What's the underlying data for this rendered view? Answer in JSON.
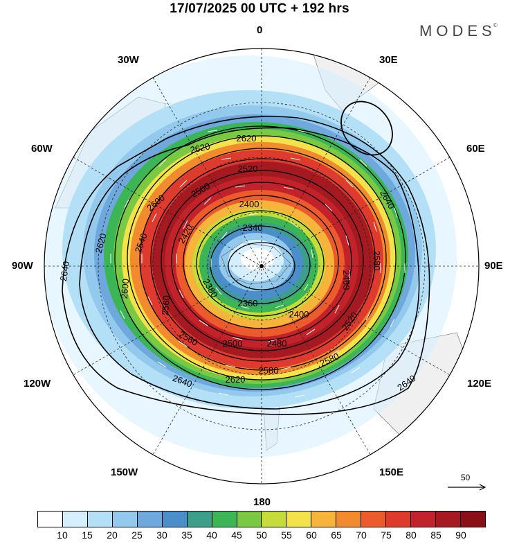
{
  "header": {
    "title": "17/07/2025  00 UTC  + 192 hrs",
    "brand": "MODES",
    "brand_mark": "©"
  },
  "map": {
    "projection": "south polar stereographic",
    "longitude_labels": {
      "top": "0",
      "bottom": "180",
      "left": "90W",
      "right": "90E",
      "upper_left_1": "30W",
      "upper_left_2": "60W",
      "upper_right_1": "30E",
      "upper_right_2": "60E",
      "lower_left_1": "120W",
      "lower_left_2": "150W",
      "lower_right_1": "120E",
      "lower_right_2": "150E"
    },
    "contour_labels": [
      "2620",
      "2620",
      "2640",
      "2640",
      "2620",
      "2600",
      "2600",
      "2580",
      "2560",
      "2520",
      "2500",
      "2480",
      "2460",
      "2420",
      "2400",
      "2400",
      "2380",
      "2360",
      "2340",
      "2640",
      "2640",
      "2620",
      "2580",
      "2580",
      "2560",
      "2540",
      "2520",
      "2500"
    ],
    "wind_reference": {
      "value": "50"
    },
    "colors": {
      "land": "#f0f0f0",
      "ocean": "#ffffff"
    }
  },
  "colorbar": {
    "ticks": [
      "10",
      "15",
      "20",
      "25",
      "30",
      "35",
      "40",
      "45",
      "50",
      "55",
      "60",
      "65",
      "70",
      "75",
      "80",
      "85",
      "90"
    ],
    "colors": [
      "#ffffff",
      "#d6efff",
      "#b4e0f7",
      "#93c9ec",
      "#6fa8dc",
      "#4a8fca",
      "#3d9e8a",
      "#3cb555",
      "#7ac943",
      "#c5dc3a",
      "#f3e24a",
      "#f6b53a",
      "#f28a2e",
      "#ec5b2c",
      "#de3a2e",
      "#c2222a",
      "#a51920",
      "#8a1018"
    ]
  }
}
